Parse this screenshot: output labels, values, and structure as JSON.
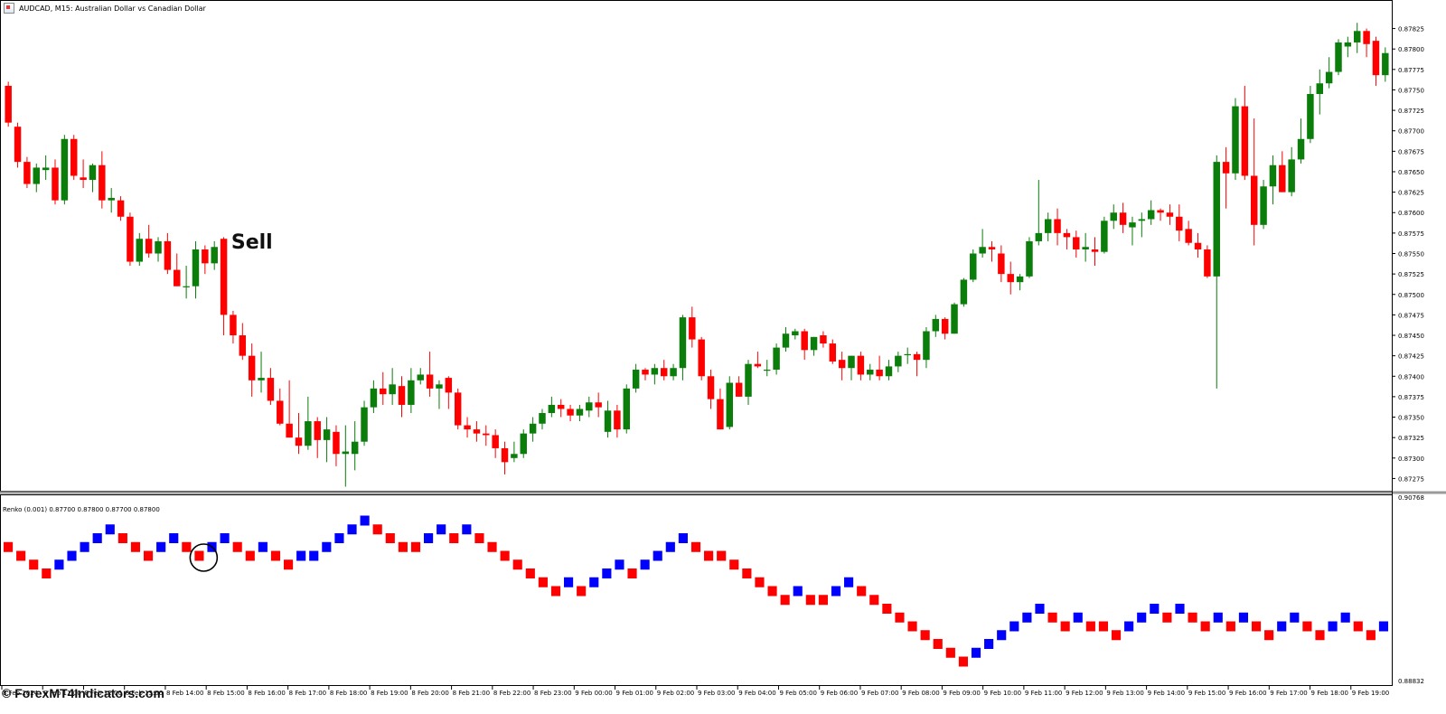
{
  "window": {
    "title": "AUDCAD, M15:  Australian Dollar vs Canadian Dollar",
    "indicator_title": "Renko (0.001) 0.87700 0.87800 0.87700 0.87800",
    "watermark": "© ForexMT4Indicators.com",
    "annotation": "Sell"
  },
  "colors": {
    "bull_candle": "#0a7d0a",
    "bear_candle": "#ff0000",
    "wick_bull": "#0a7d0a",
    "wick_bear": "#ff0000",
    "renko_up": "#0000ff",
    "renko_down": "#ff0000",
    "axis": "#000000",
    "background": "#ffffff"
  },
  "chart_data": [
    {
      "type": "candlestick",
      "symbol": "AUDCAD",
      "timeframe": "M15",
      "ylim": [
        0.8726,
        0.8784
      ],
      "yticks": [
        "0.87825",
        "0.87800",
        "0.87775",
        "0.87750",
        "0.87725",
        "0.87700",
        "0.87675",
        "0.87650",
        "0.87625",
        "0.87600",
        "0.87575",
        "0.87550",
        "0.87525",
        "0.87500",
        "0.87475",
        "0.87450",
        "0.87425",
        "0.87400",
        "0.87375",
        "0.87350",
        "0.87325",
        "0.87300",
        "0.87275"
      ],
      "annotations": [
        {
          "text": "Sell",
          "candle_index": 22
        }
      ],
      "candles": [
        [
          0.87755,
          0.8776,
          0.87705,
          0.8771
        ],
        [
          0.87705,
          0.8771,
          0.87655,
          0.87662
        ],
        [
          0.87662,
          0.87668,
          0.8763,
          0.87635
        ],
        [
          0.87635,
          0.8766,
          0.87625,
          0.87655
        ],
        [
          0.87652,
          0.8767,
          0.8764,
          0.87655
        ],
        [
          0.87655,
          0.87665,
          0.8761,
          0.87615
        ],
        [
          0.87615,
          0.87695,
          0.8761,
          0.8769
        ],
        [
          0.8769,
          0.87695,
          0.8764,
          0.87645
        ],
        [
          0.87643,
          0.87665,
          0.8763,
          0.8764
        ],
        [
          0.8764,
          0.8766,
          0.87625,
          0.87658
        ],
        [
          0.87658,
          0.87675,
          0.87605,
          0.87615
        ],
        [
          0.87615,
          0.8763,
          0.876,
          0.87618
        ],
        [
          0.87615,
          0.8762,
          0.8759,
          0.87595
        ],
        [
          0.87595,
          0.876,
          0.87535,
          0.8754
        ],
        [
          0.8754,
          0.87575,
          0.87535,
          0.87568
        ],
        [
          0.87568,
          0.87585,
          0.87545,
          0.8755
        ],
        [
          0.8755,
          0.8757,
          0.8754,
          0.87565
        ],
        [
          0.87565,
          0.87575,
          0.87525,
          0.8753
        ],
        [
          0.8753,
          0.8755,
          0.8751,
          0.8751
        ],
        [
          0.8751,
          0.87535,
          0.87495,
          0.8751
        ],
        [
          0.8751,
          0.87565,
          0.87495,
          0.87555
        ],
        [
          0.87555,
          0.8756,
          0.87525,
          0.87538
        ],
        [
          0.87538,
          0.87565,
          0.8753,
          0.87558
        ],
        [
          0.87568,
          0.8757,
          0.8745,
          0.87475
        ],
        [
          0.87475,
          0.8748,
          0.8744,
          0.8745
        ],
        [
          0.8745,
          0.87465,
          0.8742,
          0.87425
        ],
        [
          0.87425,
          0.8744,
          0.87375,
          0.87395
        ],
        [
          0.87395,
          0.8743,
          0.8738,
          0.87398
        ],
        [
          0.87398,
          0.8741,
          0.87365,
          0.8737
        ],
        [
          0.8737,
          0.87385,
          0.8734,
          0.87342
        ],
        [
          0.87342,
          0.87395,
          0.87325,
          0.87325
        ],
        [
          0.87325,
          0.87355,
          0.87305,
          0.87315
        ],
        [
          0.87315,
          0.87375,
          0.8731,
          0.87345
        ],
        [
          0.87345,
          0.8735,
          0.873,
          0.87322
        ],
        [
          0.87322,
          0.8735,
          0.87295,
          0.87335
        ],
        [
          0.87332,
          0.8734,
          0.8729,
          0.87305
        ],
        [
          0.87305,
          0.8734,
          0.87265,
          0.87308
        ],
        [
          0.87305,
          0.87345,
          0.87285,
          0.8732
        ],
        [
          0.8732,
          0.8737,
          0.87315,
          0.87362
        ],
        [
          0.87362,
          0.87395,
          0.87355,
          0.87385
        ],
        [
          0.87385,
          0.87405,
          0.87365,
          0.87378
        ],
        [
          0.87378,
          0.8741,
          0.87365,
          0.8739
        ],
        [
          0.87388,
          0.874,
          0.8735,
          0.87365
        ],
        [
          0.87365,
          0.8741,
          0.87355,
          0.87395
        ],
        [
          0.87395,
          0.8741,
          0.8739,
          0.87402
        ],
        [
          0.87402,
          0.8743,
          0.87375,
          0.87385
        ],
        [
          0.87385,
          0.87395,
          0.8736,
          0.8739
        ],
        [
          0.87398,
          0.874,
          0.8736,
          0.8738
        ],
        [
          0.8738,
          0.87385,
          0.87335,
          0.8734
        ],
        [
          0.8734,
          0.8735,
          0.87325,
          0.87335
        ],
        [
          0.87335,
          0.87345,
          0.8732,
          0.8733
        ],
        [
          0.8733,
          0.8734,
          0.87315,
          0.87328
        ],
        [
          0.87328,
          0.87335,
          0.873,
          0.87312
        ],
        [
          0.87312,
          0.8732,
          0.8728,
          0.87295
        ],
        [
          0.873,
          0.8732,
          0.87295,
          0.87305
        ],
        [
          0.87305,
          0.87335,
          0.873,
          0.8733
        ],
        [
          0.8733,
          0.8735,
          0.8732,
          0.87342
        ],
        [
          0.87342,
          0.8736,
          0.87335,
          0.87355
        ],
        [
          0.87355,
          0.87375,
          0.8735,
          0.87365
        ],
        [
          0.87365,
          0.87372,
          0.8735,
          0.8736
        ],
        [
          0.8736,
          0.87365,
          0.87345,
          0.87352
        ],
        [
          0.87352,
          0.87365,
          0.87345,
          0.8736
        ],
        [
          0.87358,
          0.87375,
          0.8735,
          0.87368
        ],
        [
          0.87368,
          0.8738,
          0.8735,
          0.87362
        ],
        [
          0.87332,
          0.8737,
          0.87325,
          0.87358
        ],
        [
          0.87358,
          0.87365,
          0.87325,
          0.87335
        ],
        [
          0.87335,
          0.8739,
          0.8733,
          0.87385
        ],
        [
          0.87385,
          0.87415,
          0.8738,
          0.87408
        ],
        [
          0.87408,
          0.8741,
          0.87395,
          0.87402
        ],
        [
          0.87402,
          0.87415,
          0.8739,
          0.8741
        ],
        [
          0.8741,
          0.8742,
          0.87395,
          0.874
        ],
        [
          0.874,
          0.87415,
          0.87395,
          0.8741
        ],
        [
          0.8741,
          0.87475,
          0.87395,
          0.87472
        ],
        [
          0.87472,
          0.87485,
          0.87435,
          0.87445
        ],
        [
          0.87445,
          0.87448,
          0.87395,
          0.874
        ],
        [
          0.874,
          0.87408,
          0.8736,
          0.87372
        ],
        [
          0.87372,
          0.87385,
          0.87335,
          0.87335
        ],
        [
          0.87338,
          0.874,
          0.87335,
          0.87392
        ],
        [
          0.87392,
          0.874,
          0.87375,
          0.87375
        ],
        [
          0.87375,
          0.8742,
          0.87365,
          0.87415
        ],
        [
          0.87415,
          0.8743,
          0.8741,
          0.87412
        ],
        [
          0.87408,
          0.8742,
          0.874,
          0.87408
        ],
        [
          0.87408,
          0.8744,
          0.87402,
          0.87435
        ],
        [
          0.87435,
          0.8746,
          0.8743,
          0.87452
        ],
        [
          0.8745,
          0.87458,
          0.87445,
          0.87455
        ],
        [
          0.87455,
          0.87458,
          0.8742,
          0.87432
        ],
        [
          0.87432,
          0.87448,
          0.87425,
          0.87448
        ],
        [
          0.8745,
          0.87455,
          0.87435,
          0.8744
        ],
        [
          0.8744,
          0.87445,
          0.87415,
          0.87418
        ],
        [
          0.8742,
          0.8743,
          0.87395,
          0.8741
        ],
        [
          0.8741,
          0.87425,
          0.87395,
          0.87425
        ],
        [
          0.87425,
          0.8743,
          0.87395,
          0.87402
        ],
        [
          0.87402,
          0.87415,
          0.87395,
          0.87408
        ],
        [
          0.87408,
          0.87425,
          0.87395,
          0.874
        ],
        [
          0.874,
          0.8742,
          0.87395,
          0.87412
        ],
        [
          0.87412,
          0.8743,
          0.87405,
          0.87425
        ],
        [
          0.87427,
          0.87435,
          0.87415,
          0.87427
        ],
        [
          0.87427,
          0.8743,
          0.874,
          0.8742
        ],
        [
          0.8742,
          0.8746,
          0.8741,
          0.87455
        ],
        [
          0.87455,
          0.87475,
          0.87448,
          0.8747
        ],
        [
          0.8747,
          0.87472,
          0.87445,
          0.87452
        ],
        [
          0.87452,
          0.8749,
          0.87452,
          0.87488
        ],
        [
          0.87488,
          0.8752,
          0.87485,
          0.87518
        ],
        [
          0.87518,
          0.87555,
          0.87515,
          0.8755
        ],
        [
          0.8755,
          0.8758,
          0.87545,
          0.87558
        ],
        [
          0.87558,
          0.87565,
          0.8754,
          0.87555
        ],
        [
          0.8755,
          0.8756,
          0.87515,
          0.87525
        ],
        [
          0.87525,
          0.8754,
          0.875,
          0.87515
        ],
        [
          0.87515,
          0.87525,
          0.87505,
          0.87522
        ],
        [
          0.87522,
          0.8757,
          0.8752,
          0.87565
        ],
        [
          0.87565,
          0.8764,
          0.8756,
          0.87575
        ],
        [
          0.87575,
          0.876,
          0.87565,
          0.87592
        ],
        [
          0.87592,
          0.87605,
          0.8756,
          0.87575
        ],
        [
          0.87575,
          0.8758,
          0.87555,
          0.8757
        ],
        [
          0.8757,
          0.87578,
          0.87545,
          0.87555
        ],
        [
          0.87555,
          0.87575,
          0.8754,
          0.87558
        ],
        [
          0.87555,
          0.8757,
          0.87535,
          0.87552
        ],
        [
          0.87552,
          0.87595,
          0.8755,
          0.8759
        ],
        [
          0.8759,
          0.8761,
          0.8758,
          0.876
        ],
        [
          0.876,
          0.87612,
          0.87575,
          0.87585
        ],
        [
          0.87582,
          0.87595,
          0.8756,
          0.87588
        ],
        [
          0.8759,
          0.876,
          0.8757,
          0.87592
        ],
        [
          0.87592,
          0.87615,
          0.87585,
          0.87603
        ],
        [
          0.87603,
          0.87605,
          0.8759,
          0.876
        ],
        [
          0.876,
          0.8761,
          0.87585,
          0.87595
        ],
        [
          0.87595,
          0.8761,
          0.87565,
          0.87578
        ],
        [
          0.8758,
          0.8759,
          0.8756,
          0.87563
        ],
        [
          0.87563,
          0.87575,
          0.87545,
          0.87555
        ],
        [
          0.87555,
          0.8756,
          0.8752,
          0.87522
        ],
        [
          0.87522,
          0.8767,
          0.87385,
          0.87662
        ],
        [
          0.87662,
          0.8768,
          0.87605,
          0.87648
        ],
        [
          0.87648,
          0.8774,
          0.8764,
          0.8773
        ],
        [
          0.8773,
          0.87755,
          0.8764,
          0.87645
        ],
        [
          0.87645,
          0.87715,
          0.8756,
          0.87585
        ],
        [
          0.87585,
          0.8764,
          0.8758,
          0.87632
        ],
        [
          0.87632,
          0.8767,
          0.8761,
          0.87658
        ],
        [
          0.87658,
          0.87675,
          0.87625,
          0.87625
        ],
        [
          0.87625,
          0.8768,
          0.8762,
          0.87665
        ],
        [
          0.87665,
          0.87715,
          0.8766,
          0.8769
        ],
        [
          0.8769,
          0.87755,
          0.87685,
          0.87745
        ],
        [
          0.87745,
          0.87775,
          0.8772,
          0.87758
        ],
        [
          0.87758,
          0.8779,
          0.87752,
          0.87772
        ],
        [
          0.87772,
          0.87812,
          0.87768,
          0.87808
        ],
        [
          0.87803,
          0.87815,
          0.8779,
          0.87808
        ],
        [
          0.87808,
          0.87832,
          0.87795,
          0.87822
        ],
        [
          0.87822,
          0.87825,
          0.8779,
          0.87806
        ],
        [
          0.8781,
          0.87815,
          0.87755,
          0.87768
        ],
        [
          0.87768,
          0.87802,
          0.8776,
          0.87795
        ]
      ]
    },
    {
      "type": "renko",
      "title": "Renko (0.001) 0.87700 0.87800 0.87700 0.87800",
      "yticks": [
        "0.90768",
        "0.88832"
      ],
      "annotations": [
        {
          "text": "circle",
          "brick_index": 15
        }
      ],
      "levels": [
        0,
        -1,
        -2,
        -3,
        -2,
        -1,
        0,
        1,
        2,
        1,
        0,
        -1,
        0,
        1,
        0,
        -1,
        0,
        1,
        0,
        -1,
        0,
        -1,
        -2,
        -1,
        -1,
        0,
        1,
        2,
        3,
        2,
        1,
        0,
        0,
        1,
        2,
        1,
        2,
        1,
        0,
        -1,
        -2,
        -3,
        -4,
        -5,
        -4,
        -5,
        -4,
        -3,
        -2,
        -3,
        -2,
        -1,
        0,
        1,
        0,
        -1,
        -1,
        -2,
        -3,
        -4,
        -5,
        -6,
        -5,
        -6,
        -6,
        -5,
        -4,
        -5,
        -6,
        -7,
        -8,
        -9,
        -10,
        -11,
        -12,
        -13,
        -12,
        -11,
        -10,
        -9,
        -8,
        -7,
        -8,
        -9,
        -8,
        -9,
        -9,
        -10,
        -9,
        -8,
        -7,
        -8,
        -7,
        -8,
        -9,
        -8,
        -9,
        -8,
        -9,
        -10,
        -9,
        -8,
        -9,
        -10,
        -9,
        -8,
        -9,
        -10,
        -9
      ]
    }
  ],
  "x_axis": {
    "ticks": [
      "8 Feb 2024",
      "8 Feb 11:00",
      "8 Feb 12:00",
      "8 Feb 13:00",
      "8 Feb 14:00",
      "8 Feb 15:00",
      "8 Feb 16:00",
      "8 Feb 17:00",
      "8 Feb 18:00",
      "8 Feb 19:00",
      "8 Feb 20:00",
      "8 Feb 21:00",
      "8 Feb 22:00",
      "8 Feb 23:00",
      "9 Feb 00:00",
      "9 Feb 01:00",
      "9 Feb 02:00",
      "9 Feb 03:00",
      "9 Feb 04:00",
      "9 Feb 05:00",
      "9 Feb 06:00",
      "9 Feb 07:00",
      "9 Feb 08:00",
      "9 Feb 09:00",
      "9 Feb 10:00",
      "9 Feb 11:00",
      "9 Feb 12:00",
      "9 Feb 13:00",
      "9 Feb 14:00",
      "9 Feb 15:00",
      "9 Feb 16:00",
      "9 Feb 17:00",
      "9 Feb 18:00",
      "9 Feb 19:00"
    ]
  }
}
